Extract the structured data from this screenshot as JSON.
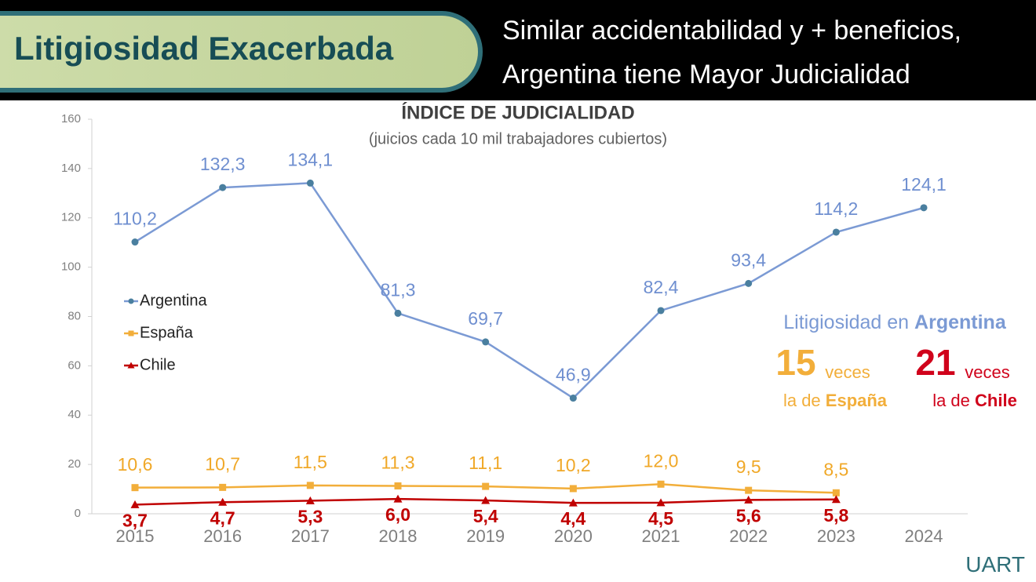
{
  "header": {
    "title": "Litigiosidad Exacerbada",
    "subtitle": [
      "Similar accidentabilidad y + beneficios,",
      "Argentina tiene Mayor Judicialidad"
    ]
  },
  "chart_data": {
    "type": "line",
    "title": "ÍNDICE DE JUDICIALIDAD",
    "subtitle": "(juicios cada 10 mil trabajadores cubiertos)",
    "categories": [
      "2015",
      "2016",
      "2017",
      "2018",
      "2019",
      "2020",
      "2021",
      "2022",
      "2023",
      "2024"
    ],
    "series": [
      {
        "name": "Argentina",
        "color": "#7b9ad4",
        "marker": "circle",
        "label_color": "#6f8fd0",
        "label_position": "above",
        "values": [
          110.2,
          132.3,
          134.1,
          81.3,
          69.7,
          46.9,
          82.4,
          93.4,
          114.2,
          124.1
        ],
        "value_labels": [
          "110,2",
          "132,3",
          "134,1",
          "81,3",
          "69,7",
          "46,9",
          "82,4",
          "93,4",
          "114,2",
          "124,1"
        ]
      },
      {
        "name": "España",
        "color": "#f2ae3a",
        "marker": "square",
        "label_color": "#f0a828",
        "label_position": "above",
        "values": [
          10.6,
          10.7,
          11.5,
          11.3,
          11.1,
          10.2,
          12.0,
          9.5,
          8.5,
          null
        ],
        "value_labels": [
          "10,6",
          "10,7",
          "11,5",
          "11,3",
          "11,1",
          "10,2",
          "12,0",
          "9,5",
          "8,5",
          null
        ]
      },
      {
        "name": "Chile",
        "color": "#c00000",
        "marker": "triangle",
        "label_color": "#c00000",
        "label_position": "below",
        "values": [
          3.7,
          4.7,
          5.3,
          6.0,
          5.4,
          4.4,
          4.5,
          5.6,
          5.8,
          null
        ],
        "value_labels": [
          "3,7",
          "4,7",
          "5,3",
          "6,0",
          "5,4",
          "4,4",
          "4,5",
          "5,6",
          "5,8",
          null
        ]
      }
    ],
    "ylim": [
      0,
      160
    ],
    "yticks": [
      0,
      20,
      40,
      60,
      80,
      100,
      120,
      140,
      160
    ],
    "grid": false,
    "legend": "left",
    "annotations": {
      "headline": [
        "Litigiosidad en ",
        "Argentina"
      ],
      "spain": {
        "number": "15",
        "word": "veces",
        "prefix": "la de ",
        "name": "España"
      },
      "chile": {
        "number": "21",
        "word": "veces",
        "prefix": "la de ",
        "name": "Chile"
      }
    }
  },
  "logo": "UART"
}
